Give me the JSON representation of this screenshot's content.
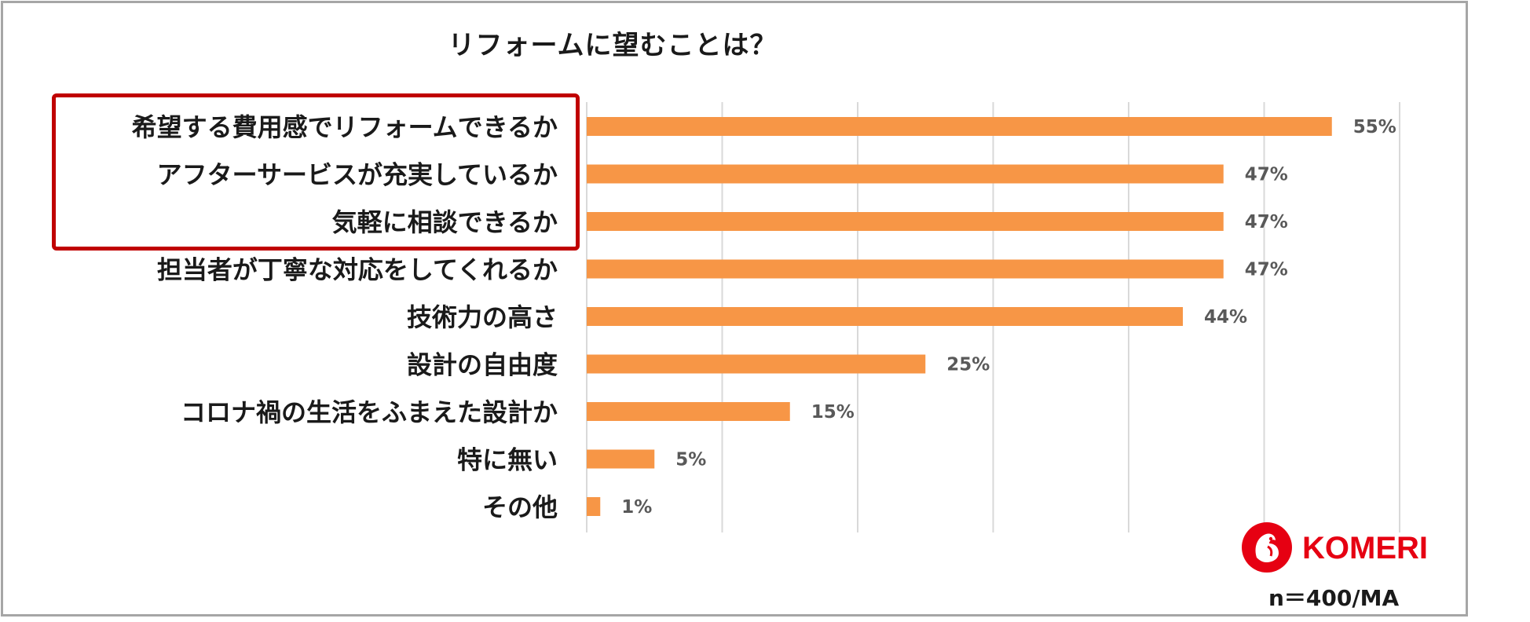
{
  "chart_data": {
    "type": "bar",
    "orientation": "horizontal",
    "title": "リフォームに望むことは？",
    "categories": [
      "希望する費用感でリフォームできるか",
      "アフターサービスが充実しているか",
      "気軽に相談できるか",
      "担当者が丁寧な対応をしてくれるか",
      "技術力の高さ",
      "設計の自由度",
      "コロナ禍の生活をふまえた設計か",
      "特に無い",
      "その他"
    ],
    "values": [
      55,
      47,
      47,
      47,
      44,
      25,
      15,
      5,
      1
    ],
    "value_labels": [
      "55%",
      "47%",
      "47%",
      "47%",
      "44%",
      "25%",
      "15%",
      "5%",
      "1%"
    ],
    "xlim": [
      0,
      60
    ],
    "grid": true,
    "bar_color": "#f79646",
    "highlight_color": "#c00000",
    "highlighted_categories": 3
  },
  "logo": {
    "text": "KOMERI",
    "color": "#e60012"
  },
  "sample_note": "n＝400/MA"
}
